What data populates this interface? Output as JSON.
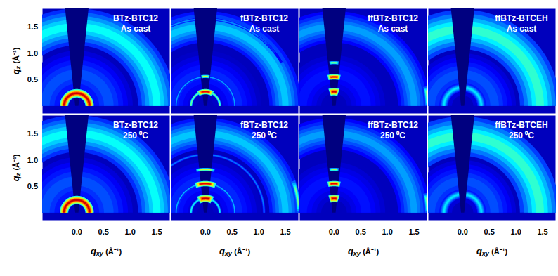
{
  "chart_data": [
    {
      "type": "scattering",
      "title": "BTz-BTC12",
      "subtitle": "As cast",
      "ylabel": "qz (Å⁻¹)",
      "tick_labels": "y",
      "xlim": [
        -0.65,
        1.75
      ],
      "ylim": [
        -0.15,
        1.85
      ],
      "xticks": [
        {
          "value": 0,
          "label": "0.0"
        },
        0.5,
        {
          "value": 1,
          "label": "1.0"
        },
        1.5
      ],
      "yticks": [
        0.5,
        {
          "value": 1,
          "label": "1.0"
        },
        1.5
      ],
      "features": [
        {
          "shape": "halo",
          "q": 1.5,
          "width": 0.7,
          "angles": [
            0,
            180
          ],
          "intensity": 0.38
        },
        {
          "shape": "halo",
          "q": 0.6,
          "width": 0.9,
          "angles": [
            0,
            180
          ],
          "intensity": 0.2
        },
        {
          "shape": "arc",
          "q": 0.24,
          "width": 0.16,
          "angles": [
            0,
            180
          ],
          "intensity": 0.92
        }
      ]
    },
    {
      "type": "scattering",
      "title": "fBTz-BTC12",
      "subtitle": "As cast",
      "tick_labels": false,
      "xlim": [
        -0.65,
        1.75
      ],
      "ylim": [
        -0.15,
        1.85
      ],
      "xticks": [
        {
          "value": 0,
          "label": "0.0"
        },
        0.5,
        {
          "value": 1,
          "label": "1.0"
        },
        1.5
      ],
      "yticks": [
        0.5,
        {
          "value": 1,
          "label": "1.0"
        },
        1.5
      ],
      "features": [
        {
          "shape": "halo",
          "q": 1.5,
          "width": 0.6,
          "angles": [
            0,
            180
          ],
          "intensity": 0.32
        },
        {
          "shape": "halo",
          "q": 0.6,
          "width": 0.9,
          "angles": [
            0,
            180
          ],
          "intensity": 0.16
        },
        {
          "shape": "ring",
          "q": 0.27,
          "width": 0.05,
          "angles": [
            0,
            180
          ],
          "intensity": 0.5
        },
        {
          "shape": "ring",
          "q": 0.55,
          "width": 0.04,
          "angles": [
            0,
            180
          ],
          "intensity": 0.3
        },
        {
          "shape": "ring",
          "q": 1.65,
          "width": 0.05,
          "angles": [
            30,
            160
          ],
          "intensity": 0.28
        },
        {
          "shape": "arc",
          "q": 0.27,
          "width": 0.1,
          "angles": [
            60,
            120
          ],
          "intensity": 0.9
        },
        {
          "shape": "arc",
          "q": 0.56,
          "width": 0.06,
          "angles": [
            82,
            98
          ],
          "intensity": 0.6
        }
      ]
    },
    {
      "type": "scattering",
      "title": "ffBTz-BTC12",
      "subtitle": "As cast",
      "tick_labels": false,
      "xlim": [
        -0.65,
        1.75
      ],
      "ylim": [
        -0.15,
        1.85
      ],
      "xticks": [
        {
          "value": 0,
          "label": "0.0"
        },
        0.5,
        {
          "value": 1,
          "label": "1.0"
        },
        1.5
      ],
      "yticks": [
        0.5,
        {
          "value": 1,
          "label": "1.0"
        },
        1.5
      ],
      "features": [
        {
          "shape": "halo",
          "q": 1.5,
          "width": 0.6,
          "angles": [
            0,
            180
          ],
          "intensity": 0.28
        },
        {
          "shape": "halo",
          "q": 0.6,
          "width": 0.9,
          "angles": [
            0,
            180
          ],
          "intensity": 0.14
        },
        {
          "shape": "arc",
          "q": 0.27,
          "width": 0.14,
          "angles": [
            72,
            108
          ],
          "intensity": 0.92
        },
        {
          "shape": "arc",
          "q": 0.55,
          "width": 0.1,
          "angles": [
            78,
            102
          ],
          "intensity": 0.9
        },
        {
          "shape": "arc",
          "q": 0.82,
          "width": 0.06,
          "angles": [
            84,
            96
          ],
          "intensity": 0.55
        },
        {
          "shape": "arc",
          "q": 1.75,
          "width": 0.08,
          "angles": [
            0,
            12
          ],
          "intensity": 0.48
        }
      ]
    },
    {
      "type": "scattering",
      "title": "ffBTz-BTCEH",
      "subtitle": "As cast",
      "tick_labels": false,
      "xlim": [
        -0.65,
        1.75
      ],
      "ylim": [
        -0.15,
        1.85
      ],
      "xticks": [
        {
          "value": 0,
          "label": "0.0"
        },
        0.5,
        {
          "value": 1,
          "label": "1.0"
        },
        1.5
      ],
      "yticks": [
        0.5,
        {
          "value": 1,
          "label": "1.0"
        },
        1.5
      ],
      "features": [
        {
          "shape": "halo",
          "q": 1.45,
          "width": 0.75,
          "angles": [
            0,
            180
          ],
          "intensity": 0.42
        },
        {
          "shape": "halo",
          "q": 0.6,
          "width": 0.8,
          "angles": [
            0,
            180
          ],
          "intensity": 0.2
        },
        {
          "shape": "ring",
          "q": 0.35,
          "width": 0.15,
          "angles": [
            0,
            180
          ],
          "intensity": 0.35
        }
      ]
    },
    {
      "type": "scattering",
      "title": "BTz-BTC12",
      "subtitle": "250 ⁰C",
      "xlabel": "qxy (Å⁻¹)",
      "ylabel": "qz (Å⁻¹)",
      "tick_labels": true,
      "xlim": [
        -0.65,
        1.75
      ],
      "ylim": [
        -0.15,
        1.85
      ],
      "xticks": [
        {
          "value": 0,
          "label": "0.0"
        },
        0.5,
        {
          "value": 1,
          "label": "1.0"
        },
        1.5
      ],
      "yticks": [
        0.5,
        {
          "value": 1,
          "label": "1.0"
        },
        1.5
      ],
      "features": [
        {
          "shape": "halo",
          "q": 1.5,
          "width": 0.7,
          "angles": [
            0,
            180
          ],
          "intensity": 0.38
        },
        {
          "shape": "halo",
          "q": 0.6,
          "width": 0.9,
          "angles": [
            0,
            180
          ],
          "intensity": 0.2
        },
        {
          "shape": "arc",
          "q": 0.24,
          "width": 0.16,
          "angles": [
            0,
            180
          ],
          "intensity": 0.92
        }
      ]
    },
    {
      "type": "scattering",
      "title": "fBTz-BTC12",
      "subtitle": "250 ⁰C",
      "xlabel": "qxy (Å⁻¹)",
      "tick_labels": "x",
      "xlim": [
        -0.65,
        1.75
      ],
      "ylim": [
        -0.15,
        1.85
      ],
      "xticks": [
        {
          "value": 0,
          "label": "0.0"
        },
        0.5,
        {
          "value": 1,
          "label": "1.0"
        },
        1.5
      ],
      "yticks": [
        0.5,
        {
          "value": 1,
          "label": "1.0"
        },
        1.5
      ],
      "features": [
        {
          "shape": "halo",
          "q": 1.5,
          "width": 0.6,
          "angles": [
            0,
            180
          ],
          "intensity": 0.32
        },
        {
          "shape": "halo",
          "q": 0.6,
          "width": 0.9,
          "angles": [
            0,
            180
          ],
          "intensity": 0.16
        },
        {
          "shape": "ring",
          "q": 0.27,
          "width": 0.05,
          "angles": [
            0,
            180
          ],
          "intensity": 0.4
        },
        {
          "shape": "ring",
          "q": 0.55,
          "width": 0.04,
          "angles": [
            0,
            180
          ],
          "intensity": 0.32
        },
        {
          "shape": "ring",
          "q": 1.1,
          "width": 0.05,
          "angles": [
            0,
            180
          ],
          "intensity": 0.25
        },
        {
          "shape": "arc",
          "q": 1.75,
          "width": 0.08,
          "angles": [
            0,
            20
          ],
          "intensity": 0.5
        },
        {
          "shape": "arc",
          "q": 0.27,
          "width": 0.14,
          "angles": [
            62,
            118
          ],
          "intensity": 0.93
        },
        {
          "shape": "arc",
          "q": 0.55,
          "width": 0.1,
          "angles": [
            70,
            110
          ],
          "intensity": 0.9
        },
        {
          "shape": "arc",
          "q": 0.82,
          "width": 0.06,
          "angles": [
            78,
            102
          ],
          "intensity": 0.6
        }
      ]
    },
    {
      "type": "scattering",
      "title": "ffBTz-BTC12",
      "subtitle": "250 ⁰C",
      "xlabel": "qxy (Å⁻¹)",
      "tick_labels": "x",
      "xlim": [
        -0.65,
        1.75
      ],
      "ylim": [
        -0.15,
        1.85
      ],
      "xticks": [
        {
          "value": 0,
          "label": "0.0"
        },
        0.5,
        {
          "value": 1,
          "label": "1.0"
        },
        1.5
      ],
      "yticks": [
        0.5,
        {
          "value": 1,
          "label": "1.0"
        },
        1.5
      ],
      "features": [
        {
          "shape": "halo",
          "q": 1.5,
          "width": 0.6,
          "angles": [
            0,
            180
          ],
          "intensity": 0.28
        },
        {
          "shape": "halo",
          "q": 0.6,
          "width": 0.9,
          "angles": [
            0,
            180
          ],
          "intensity": 0.14
        },
        {
          "shape": "arc",
          "q": 0.27,
          "width": 0.14,
          "angles": [
            72,
            108
          ],
          "intensity": 0.92
        },
        {
          "shape": "arc",
          "q": 0.55,
          "width": 0.1,
          "angles": [
            78,
            102
          ],
          "intensity": 0.9
        },
        {
          "shape": "arc",
          "q": 0.82,
          "width": 0.06,
          "angles": [
            84,
            96
          ],
          "intensity": 0.55
        },
        {
          "shape": "arc",
          "q": 1.75,
          "width": 0.08,
          "angles": [
            0,
            12
          ],
          "intensity": 0.48
        }
      ]
    },
    {
      "type": "scattering",
      "title": "ffBTz-BTCEH",
      "subtitle": "250 ⁰C",
      "xlabel": "qxy (Å⁻¹)",
      "tick_labels": "x",
      "xlim": [
        -0.65,
        1.75
      ],
      "ylim": [
        -0.15,
        1.85
      ],
      "xticks": [
        {
          "value": 0,
          "label": "0.0"
        },
        0.5,
        {
          "value": 1,
          "label": "1.0"
        },
        1.5
      ],
      "yticks": [
        0.5,
        {
          "value": 1,
          "label": "1.0"
        },
        1.5
      ],
      "features": [
        {
          "shape": "halo",
          "q": 1.45,
          "width": 0.75,
          "angles": [
            0,
            180
          ],
          "intensity": 0.42
        },
        {
          "shape": "halo",
          "q": 0.6,
          "width": 0.8,
          "angles": [
            0,
            180
          ],
          "intensity": 0.2
        },
        {
          "shape": "ring",
          "q": 0.35,
          "width": 0.15,
          "angles": [
            0,
            180
          ],
          "intensity": 0.35
        }
      ]
    }
  ]
}
